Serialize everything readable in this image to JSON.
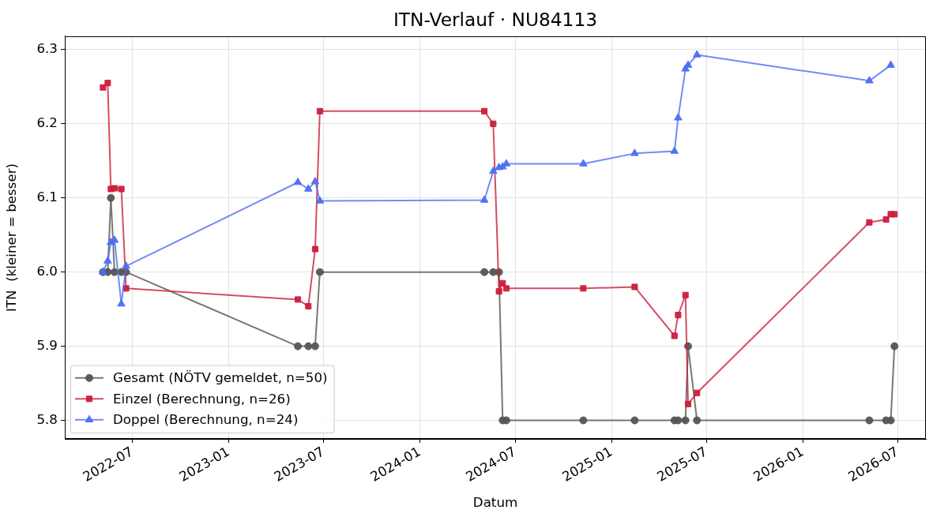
{
  "chart_data": {
    "type": "line",
    "title": "ITN-Verlauf · NU84113",
    "xlabel": "Datum",
    "ylabel": "ITN  (kleiner = besser)",
    "xlim": [
      "2022-02-22",
      "2026-08-24"
    ],
    "xticks": [
      "2022-07",
      "2023-01",
      "2023-07",
      "2024-01",
      "2024-07",
      "2025-01",
      "2025-07",
      "2026-01",
      "2026-07"
    ],
    "ylim": [
      5.775,
      6.318
    ],
    "yticks": [
      5.8,
      5.9,
      {
        "value": 6.0,
        "label": "6.0"
      },
      6.1,
      6.2,
      6.3
    ],
    "grid": true,
    "legend": "bottom left",
    "line_style": "solid",
    "series": [
      {
        "name": "Gesamt (NÖTV gemeldet, n=50)",
        "color": "#555555",
        "marker": "circle",
        "x": [
          "2022-05-06",
          "2022-05-15",
          "2022-05-21",
          "2022-05-28",
          "2022-06-10",
          "2022-06-19",
          "2023-05-13",
          "2023-06-02",
          "2023-06-15",
          "2023-06-24",
          "2024-05-03",
          "2024-05-20",
          "2024-05-31",
          "2024-06-07",
          "2024-06-14",
          "2024-11-08",
          "2025-02-14",
          "2025-05-01",
          "2025-05-08",
          "2025-05-22",
          "2025-05-27",
          "2025-06-13",
          "2026-05-08",
          "2026-06-09",
          "2026-06-18",
          "2026-06-25"
        ],
        "values": [
          6.0,
          6.0,
          6.1,
          6.0,
          6.0,
          6.0,
          5.9,
          5.9,
          5.9,
          6.0,
          6.0,
          6.0,
          6.0,
          5.8,
          5.8,
          5.8,
          5.8,
          5.8,
          5.8,
          5.8,
          5.9,
          5.8,
          5.8,
          5.8,
          5.8,
          5.9
        ]
      },
      {
        "name": "Einzel (Berechnung, n=26)",
        "color": "#cc1f3c",
        "marker": "square",
        "x": [
          "2022-05-06",
          "2022-05-15",
          "2022-05-21",
          "2022-05-28",
          "2022-06-10",
          "2022-06-19",
          "2023-05-13",
          "2023-06-02",
          "2023-06-15",
          "2023-06-24",
          "2024-05-03",
          "2024-05-20",
          "2024-05-31",
          "2024-06-07",
          "2024-06-14",
          "2024-11-08",
          "2025-02-14",
          "2025-05-01",
          "2025-05-08",
          "2025-05-22",
          "2025-05-27",
          "2025-06-13",
          "2026-05-08",
          "2026-06-09",
          "2026-06-18",
          "2026-06-25"
        ],
        "values": [
          6.249,
          6.255,
          6.112,
          6.113,
          6.112,
          5.978,
          5.963,
          5.954,
          6.031,
          6.217,
          6.217,
          6.2,
          5.974,
          5.985,
          5.978,
          5.978,
          5.98,
          5.914,
          5.942,
          5.969,
          5.822,
          5.837,
          6.067,
          6.071,
          6.078,
          6.078
        ]
      },
      {
        "name": "Doppel (Berechnung, n=24)",
        "color": "#4d6ef5",
        "marker": "triangle",
        "x": [
          "2022-05-06",
          "2022-05-15",
          "2022-05-21",
          "2022-05-28",
          "2022-06-10",
          "2022-06-19",
          "2023-05-13",
          "2023-06-02",
          "2023-06-15",
          "2023-06-24",
          "2024-05-03",
          "2024-05-20",
          "2024-05-31",
          "2024-06-07",
          "2024-06-14",
          "2024-11-08",
          "2025-02-14",
          "2025-05-01",
          "2025-05-08",
          "2025-05-22",
          "2025-05-27",
          "2025-06-13",
          "2026-05-08",
          "2026-06-18"
        ],
        "values": [
          6.0,
          6.015,
          6.04,
          6.043,
          5.957,
          6.008,
          6.121,
          6.112,
          6.122,
          6.096,
          6.097,
          6.136,
          6.141,
          6.142,
          6.146,
          6.146,
          6.16,
          6.163,
          6.208,
          6.274,
          6.279,
          6.293,
          6.258,
          6.279
        ]
      }
    ]
  }
}
